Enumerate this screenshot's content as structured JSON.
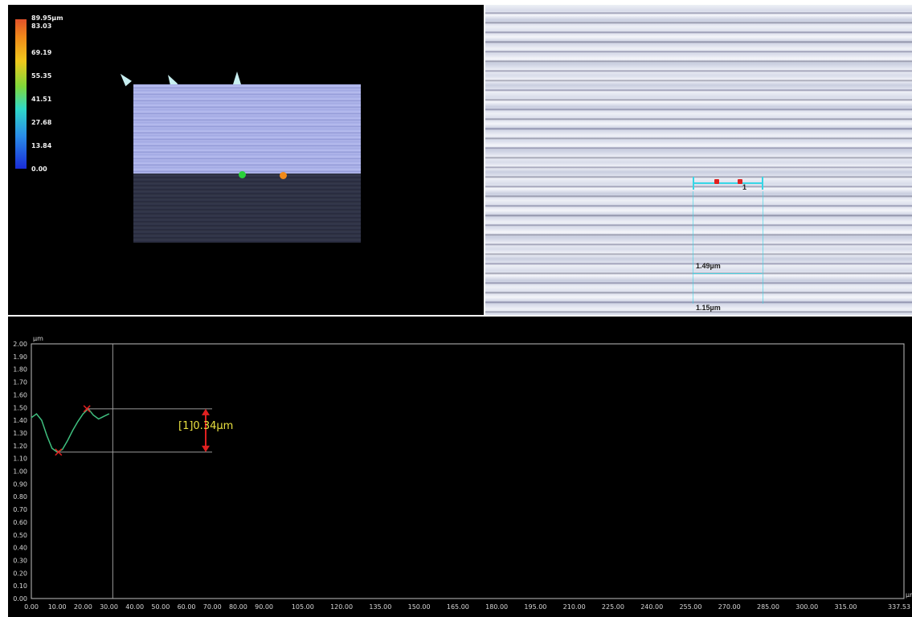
{
  "view3d": {
    "color_scale": {
      "labels": [
        "89.95µm",
        "83.03",
        "69.19",
        "55.35",
        "41.51",
        "27.68",
        "13.84",
        "0.00"
      ],
      "colors": {
        "top": "#e2522a",
        "mid": "#7fd83a",
        "low": "#2a8de8",
        "bottom": "#1a2cd8"
      }
    },
    "markers": {
      "green": "#2ad13a",
      "orange": "#f08a1a"
    }
  },
  "microscope": {
    "measurement_labels": [
      "1",
      "1.49µm",
      "1.15µm"
    ],
    "line_color": "#38d6e6"
  },
  "profile": {
    "unit": "µm",
    "callout": "[1]0.34µm"
  },
  "chart_data": {
    "type": "line",
    "title": "",
    "xlabel": "µm",
    "ylabel": "µm",
    "xlim": [
      0,
      337.53
    ],
    "ylim": [
      0,
      2.0
    ],
    "x_ticks": [
      "0.00",
      "10.00",
      "20.00",
      "30.00",
      "40.00",
      "50.00",
      "60.00",
      "70.00",
      "80.00",
      "90.00",
      "105.00",
      "120.00",
      "135.00",
      "150.00",
      "165.00",
      "180.00",
      "195.00",
      "210.00",
      "225.00",
      "240.00",
      "255.00",
      "270.00",
      "285.00",
      "300.00",
      "315.00",
      "337.53"
    ],
    "y_ticks": [
      "2.00",
      "1.90",
      "1.80",
      "1.70",
      "1.60",
      "1.50",
      "1.40",
      "1.30",
      "1.20",
      "1.10",
      "1.00",
      "0.90",
      "0.80",
      "0.70",
      "0.60",
      "0.50",
      "0.40",
      "0.30",
      "0.20",
      "0.10",
      "0.00"
    ],
    "series": [
      {
        "color": "#3fbf7f",
        "x": [
          0,
          2,
          4,
          6,
          8,
          10,
          12,
          14,
          16,
          18,
          20,
          22,
          24,
          26,
          28,
          30
        ],
        "values": [
          1.42,
          1.45,
          1.4,
          1.28,
          1.18,
          1.15,
          1.17,
          1.24,
          1.32,
          1.39,
          1.45,
          1.49,
          1.44,
          1.41,
          1.43,
          1.45
        ]
      }
    ],
    "measurement": {
      "label": "[1]0.34µm",
      "x_low": 10.5,
      "y_low": 1.15,
      "x_high": 21.5,
      "y_high": 1.49
    },
    "cursor_x": 31.5,
    "grid": false
  }
}
